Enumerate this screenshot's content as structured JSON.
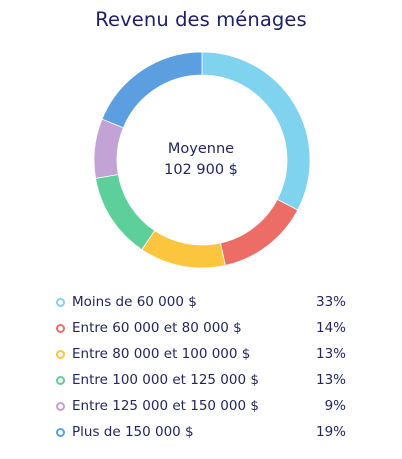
{
  "chart_data": {
    "type": "pie",
    "title": "Revenu des ménages",
    "center_label": "Moyenne",
    "center_value": "102 900 $",
    "categories": [
      "Moins de 60 000 $",
      "Entre 60 000 et 80 000 $",
      "Entre 80 000 et 100 000 $",
      "Entre 100 000 et 125 000 $",
      "Entre 125 000 et 150 000 $",
      "Plus de 150 000 $"
    ],
    "values": [
      33,
      14,
      13,
      13,
      9,
      19
    ],
    "value_labels": [
      "33%",
      "14%",
      "13%",
      "13%",
      "9%",
      "19%"
    ],
    "colors": [
      "#7fd3ee",
      "#ec6d66",
      "#fbc53d",
      "#5ccf9a",
      "#c3a3d6",
      "#5b9fe0"
    ],
    "legend_position": "bottom"
  }
}
